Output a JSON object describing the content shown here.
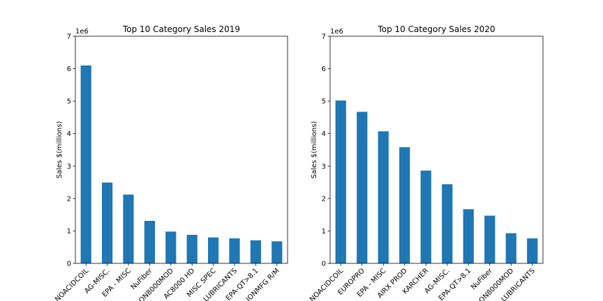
{
  "chart_data": [
    {
      "type": "bar",
      "title": "Top 10 Category Sales 2019",
      "xlabel": "",
      "ylabel": "Sales $(millions)",
      "offset_label": "1e6",
      "ylim": [
        0,
        7
      ],
      "yticks": [
        0,
        1,
        2,
        3,
        4,
        5,
        6,
        7
      ],
      "grid": false,
      "bar_color": "#1f77b4",
      "categories": [
        "NOACIDCOIL",
        "AG-MISC.",
        "EPA - MISC",
        "NuFiber",
        "ON8000MOD",
        "AC8000 HD",
        "MISC SPEC",
        "LUBRICANTS",
        "EPA-QT>8.1",
        "IONMFG R/M"
      ],
      "values": [
        6.1,
        2.49,
        2.12,
        1.31,
        0.98,
        0.88,
        0.8,
        0.77,
        0.71,
        0.68
      ]
    },
    {
      "type": "bar",
      "title": "Top 10 Category Sales 2020",
      "xlabel": "",
      "ylabel": "Sales $(millions)",
      "offset_label": "1e6",
      "ylim": [
        0,
        7
      ],
      "yticks": [
        0,
        1,
        2,
        3,
        4,
        5,
        6,
        7
      ],
      "grid": false,
      "bar_color": "#1f77b4",
      "categories": [
        "NOACIDCOIL",
        "EUROPRO",
        "EPA - MISC",
        "AIRX PROD",
        "KARCHER",
        "AG-MISC.",
        "EPA-QT>8.1",
        "NuFiber",
        "ON8000MOD",
        "LUBRICANTS"
      ],
      "values": [
        5.02,
        4.67,
        4.07,
        3.58,
        2.86,
        2.44,
        1.67,
        1.47,
        0.93,
        0.77
      ]
    }
  ]
}
